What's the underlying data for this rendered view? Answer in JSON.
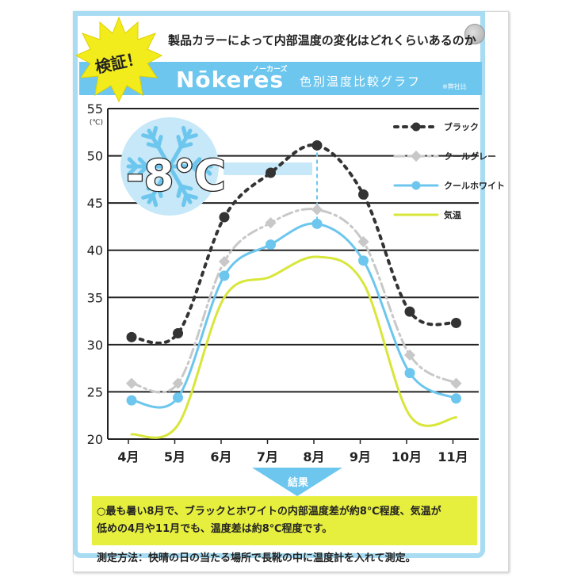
{
  "header": {
    "subtitle": "製品カラーによって内部温度の変化はどれくらいあるのか",
    "badge": "検証！",
    "brand": "Nōkeres",
    "brand_kana": "ノーカーズ",
    "band_title": "色別温度比較グラフ",
    "band_note": "※弊社比"
  },
  "callout": {
    "value": "-8℃",
    "icon": "snowflake-icon"
  },
  "chart_data": {
    "type": "line",
    "categories": [
      "4月",
      "5月",
      "6月",
      "7月",
      "8月",
      "9月",
      "10月",
      "11月"
    ],
    "yunit": "(℃)",
    "ylim": [
      20,
      55
    ],
    "yticks": [
      20,
      25,
      30,
      35,
      40,
      45,
      50,
      55
    ],
    "grid": true,
    "legend_position": "top-right",
    "series": [
      {
        "name": "ブラック",
        "values": [
          30.8,
          31.2,
          43.5,
          48.2,
          51.1,
          45.9,
          33.5,
          32.3
        ],
        "color": "#333333",
        "style": "dotted",
        "markers": true
      },
      {
        "name": "クールグレー",
        "values": [
          25.9,
          25.9,
          38.8,
          42.9,
          44.3,
          40.9,
          28.9,
          25.9
        ],
        "color": "#c8c8c8",
        "style": "dashdot",
        "markers": true
      },
      {
        "name": "クールホワイト",
        "values": [
          24.1,
          24.4,
          37.3,
          40.6,
          42.8,
          38.9,
          27.0,
          24.3
        ],
        "color": "#6cc6ee",
        "style": "solid",
        "markers": true
      },
      {
        "name": "気温",
        "values": [
          20.5,
          21.5,
          35.0,
          37.2,
          39.3,
          36.5,
          22.5,
          22.3
        ],
        "color": "#d8e63a",
        "style": "solid",
        "markers": false
      }
    ]
  },
  "result": {
    "label": "結果",
    "line1": "○最も暑い8月で、ブラックとホワイトの内部温度差が約8℃程度、気温が",
    "line2": "低めの4月や11月でも、温度差は約8℃程度です。"
  },
  "method": "測定方法：快晴の日の当たる場所で長靴の中に温度計を入れて測定。",
  "colors": {
    "sky_blue": "#6cc6ee",
    "frame_blue": "#a8dcf3",
    "result_yellow": "#e6ef3e",
    "badge_yellow": "#f3ec1c"
  }
}
